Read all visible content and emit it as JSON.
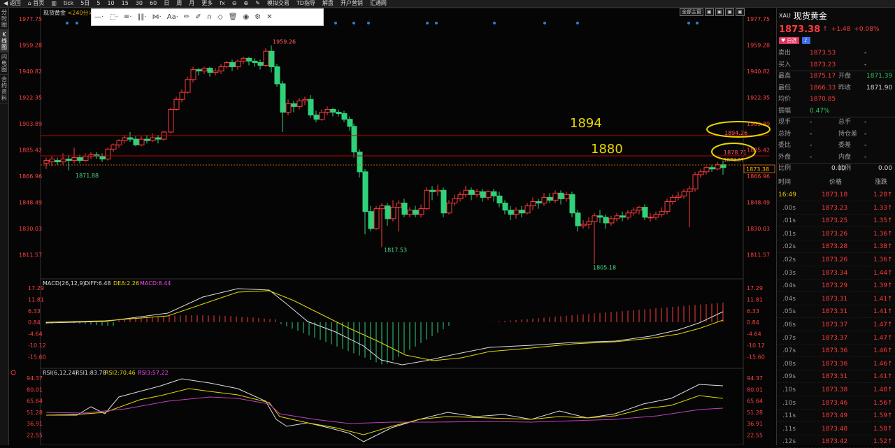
{
  "topbar": {
    "items": [
      "返回",
      "首页",
      "",
      "tick",
      "5日",
      "5",
      "10",
      "15",
      "30",
      "60",
      "日",
      "周",
      "月",
      "更多",
      "",
      "",
      "模拟交易",
      "TD指导",
      "解盘",
      "开户营销",
      "汇通网"
    ]
  },
  "sidebar": {
    "tabs": [
      "分时图",
      "K线图",
      "闪电图",
      "合约资料"
    ]
  },
  "chart": {
    "title": "现货黄金",
    "period": "<240分>",
    "view_mode": "全部主窗",
    "price_axis": [
      "1977.75",
      "1959.28",
      "1940.82",
      "1922.35",
      "1903.89",
      "1885.42",
      "1866.96",
      "1848.49",
      "1830.03",
      "1811.57"
    ],
    "price_marks": [
      "1959.26",
      "1871.88",
      "1817.53",
      "1805.18"
    ],
    "annotations": {
      "a1894": "1894",
      "a1880": "1880",
      "l1894": "1894.26",
      "l1880": "1878.71",
      "lcur": "1873.37"
    },
    "current_price_tag": "1873.38",
    "macd_label": "MACD(26,12,9)",
    "macd_diff": "DIFF:6.48",
    "macd_dea": "DEA:2.26",
    "macd_val": "MACD:8.44",
    "macd_axis": [
      "17.29",
      "11.81",
      "6.33",
      "0.84",
      "-4.64",
      "-10.12",
      "-15.60"
    ],
    "rsi_label": "RSI(6,12,24)",
    "rsi1": "RSI1:83.78",
    "rsi2": "RSI2:70.46",
    "rsi3": "RSI3:57.22",
    "rsi_axis": [
      "94.37",
      "80.01",
      "65.64",
      "51.28",
      "36.91",
      "22.55"
    ],
    "colors": {
      "up": "#ff3b3b",
      "down": "#2fd27a",
      "line": "#c00000",
      "ellipse": "#e6d800"
    }
  },
  "quote": {
    "code": "XAU",
    "name": "现货黄金",
    "price": "1873.38",
    "arrow": "↑",
    "change": "+1.48",
    "change_pct": "+0.08%",
    "badge": "自选",
    "rows": [
      {
        "l": "卖出",
        "v": "1873.53",
        "l2": "",
        "v2": "-"
      },
      {
        "l": "买入",
        "v": "1873.23",
        "l2": "",
        "v2": "-"
      },
      {
        "l": "最高",
        "v": "1875.17",
        "l2": "开盘",
        "v2": "1871.39"
      },
      {
        "l": "最低",
        "v": "1866.33",
        "l2": "昨收",
        "v2": "1871.90"
      },
      {
        "l": "均价",
        "v": "1870.85",
        "l2": "",
        "v2": ""
      },
      {
        "l": "振幅",
        "v": "0.47%",
        "l2": "",
        "v2": ""
      },
      {
        "l": "现手",
        "v": "-",
        "l2": "总手",
        "v2": "-"
      },
      {
        "l": "总持",
        "v": "-",
        "l2": "持仓差",
        "v2": "-"
      },
      {
        "l": "委比",
        "v": "-",
        "l2": "委差",
        "v2": "-"
      },
      {
        "l": "外盘",
        "v": "-",
        "l2": "内盘",
        "v2": "-"
      },
      {
        "l": "比例",
        "v": "0.00",
        "l2": "比例",
        "v2": "0.00"
      }
    ],
    "tick_headers": [
      "时间",
      "价格",
      "涨跌"
    ],
    "ticks": [
      {
        "t": "16:49",
        "p": "1873.18",
        "c": "1.28"
      },
      {
        "t": ".00s",
        "p": "1873.23",
        "c": "1.33"
      },
      {
        "t": ".01s",
        "p": "1873.25",
        "c": "1.35"
      },
      {
        "t": ".01s",
        "p": "1873.26",
        "c": "1.36"
      },
      {
        "t": ".02s",
        "p": "1873.28",
        "c": "1.38"
      },
      {
        "t": ".02s",
        "p": "1873.26",
        "c": "1.36"
      },
      {
        "t": ".03s",
        "p": "1873.34",
        "c": "1.44"
      },
      {
        "t": ".04s",
        "p": "1873.29",
        "c": "1.39"
      },
      {
        "t": ".04s",
        "p": "1873.31",
        "c": "1.41"
      },
      {
        "t": ".05s",
        "p": "1873.31",
        "c": "1.41"
      },
      {
        "t": ".06s",
        "p": "1873.37",
        "c": "1.47"
      },
      {
        "t": ".07s",
        "p": "1873.37",
        "c": "1.47"
      },
      {
        "t": ".07s",
        "p": "1873.36",
        "c": "1.46"
      },
      {
        "t": ".08s",
        "p": "1873.36",
        "c": "1.46"
      },
      {
        "t": ".09s",
        "p": "1873.31",
        "c": "1.41"
      },
      {
        "t": ".10s",
        "p": "1873.38",
        "c": "1.48"
      },
      {
        "t": ".10s",
        "p": "1873.46",
        "c": "1.56"
      },
      {
        "t": ".11s",
        "p": "1873.49",
        "c": "1.59"
      },
      {
        "t": ".11s",
        "p": "1873.48",
        "c": "1.58"
      },
      {
        "t": ".12s",
        "p": "1873.42",
        "c": "1.52"
      }
    ]
  }
}
